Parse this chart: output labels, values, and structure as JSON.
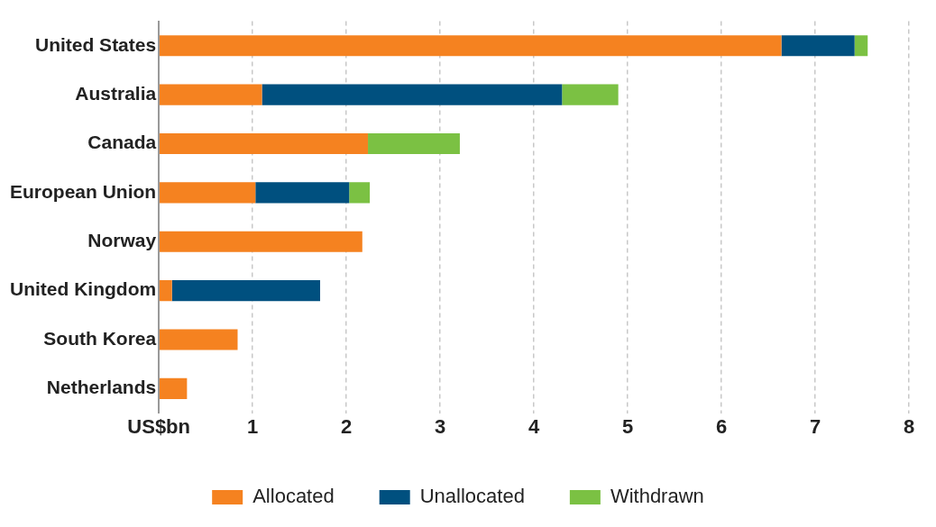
{
  "chart_data": {
    "type": "bar",
    "orientation": "horizontal",
    "stacked": true,
    "categories": [
      "United States",
      "Australia",
      "Canada",
      "European Union",
      "Norway",
      "United Kingdom",
      "South Korea",
      "Netherlands"
    ],
    "series": [
      {
        "name": "Allocated",
        "color": "#f58220",
        "values": [
          6.64,
          1.1,
          2.23,
          1.03,
          2.17,
          0.14,
          0.84,
          0.3
        ]
      },
      {
        "name": "Unallocated",
        "color": "#00507f",
        "values": [
          0.78,
          3.2,
          null,
          1.0,
          null,
          1.58,
          null,
          null
        ]
      },
      {
        "name": "Withdrawn",
        "color": "#7bc143",
        "values": [
          0.14,
          0.6,
          0.98,
          0.22,
          null,
          null,
          null,
          null
        ]
      }
    ],
    "xlim": [
      0,
      8
    ],
    "xticks": [
      {
        "value": 0,
        "label": "US$bn"
      },
      1,
      2,
      3,
      4,
      5,
      6,
      7,
      8
    ],
    "grid": "x",
    "legend": "bottom"
  }
}
